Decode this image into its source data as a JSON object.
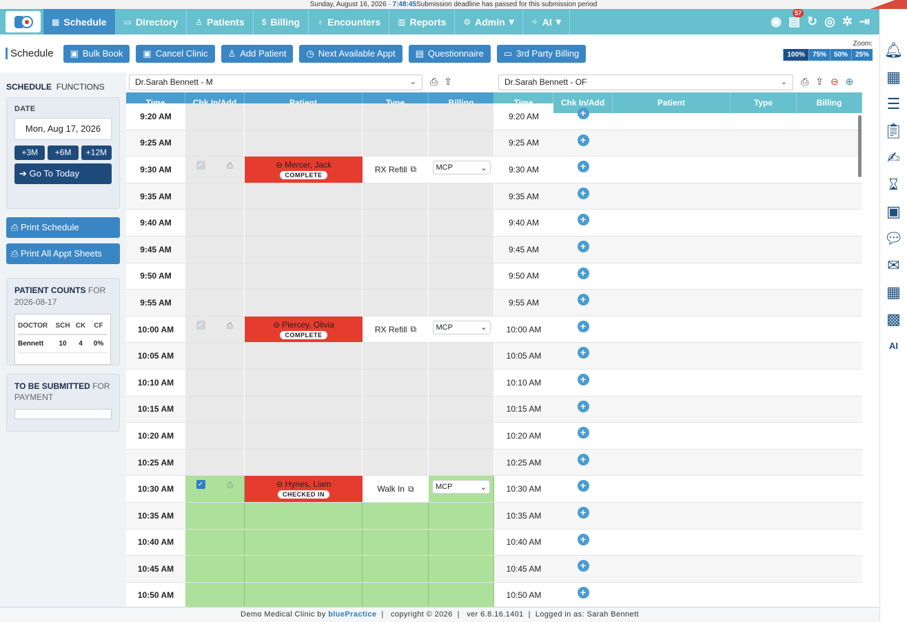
{
  "topbar": {
    "date": "Sunday, August 16, 2026 · ",
    "time": "7:48:45",
    "notice": "Submission deadline has passed for this submission period"
  },
  "nav": {
    "items": [
      {
        "label": "Schedule",
        "icon": "calendar-icon"
      },
      {
        "label": "Directory",
        "icon": "book-icon"
      },
      {
        "label": "Patients",
        "icon": "users-icon"
      },
      {
        "label": "Billing",
        "icon": "dollar-icon"
      },
      {
        "label": "Encounters",
        "icon": "stethoscope-icon"
      },
      {
        "label": "Reports",
        "icon": "bar-chart-icon"
      },
      {
        "label": "Admin",
        "icon": "gear-icon"
      },
      {
        "label": "AI",
        "icon": "sparkle-icon"
      }
    ],
    "badge_count": "57"
  },
  "toolbar": {
    "title": "Schedule",
    "buttons": [
      "Bulk Book",
      "Cancel Clinic",
      "Add Patient",
      "Next Available Appt",
      "Questionnaire",
      "3rd Party Billing"
    ],
    "zoom_label": "Zoom:",
    "zoom_options": [
      "100%",
      "75%",
      "50%",
      "25%"
    ],
    "zoom_selected": "100%"
  },
  "sidebar": {
    "heading": "SCHEDULE",
    "heading_sub": "FUNCTIONS",
    "date_label": "DATE",
    "date_value": "Mon, Aug 17, 2026",
    "jump_buttons": [
      "+3M",
      "+6M",
      "+12M"
    ],
    "today_button": "➔ Go To Today",
    "print_schedule": "Print Schedule",
    "print_all": "Print All Appt Sheets",
    "counts_title": "PATIENT COUNTS",
    "counts_for": "FOR",
    "counts_date": "2026-08-17",
    "counts_headers": [
      "DOCTOR",
      "SCH",
      "CK",
      "CF"
    ],
    "counts_row": [
      "Bennett",
      "10",
      "4",
      "0%"
    ],
    "submit_title": "TO BE SUBMITTED",
    "submit_for": "FOR",
    "submit_sub": "PAYMENT"
  },
  "left_panel": {
    "provider": "Dr.Sarah Bennett - M",
    "columns": [
      "Time",
      "Chk In/Add",
      "Patient",
      "Type",
      "Billing"
    ]
  },
  "right_panel": {
    "provider": "Dr.Sarah Bennett - OF",
    "columns": [
      "Time",
      "Chk In/Add",
      "Patient",
      "Type",
      "Billing"
    ]
  },
  "times": [
    "9:20 AM",
    "9:25 AM",
    "9:30 AM",
    "9:35 AM",
    "9:40 AM",
    "9:45 AM",
    "9:50 AM",
    "9:55 AM",
    "10:00 AM",
    "10:05 AM",
    "10:10 AM",
    "10:15 AM",
    "10:20 AM",
    "10:25 AM",
    "10:30 AM",
    "10:35 AM",
    "10:40 AM",
    "10:45 AM",
    "10:50 AM"
  ],
  "appointments": [
    {
      "slot": 2,
      "patient": "Mercer, Jack",
      "status": "COMPLETE",
      "type": "RX Refill",
      "billing": "MCP",
      "checked": false
    },
    {
      "slot": 8,
      "patient": "Piercey, Olivia",
      "status": "COMPLETE",
      "type": "RX Refill",
      "billing": "MCP",
      "checked": false
    },
    {
      "slot": 14,
      "patient": "Hynes, Liam",
      "status": "CHECKED IN",
      "type": "Walk In",
      "billing": "MCP",
      "checked": true
    }
  ],
  "footer": {
    "clinic": "Demo Medical Clinic by ",
    "brand": "bluePractice",
    "rest": "  |   copyright © 2026  |   ver 6.8.16.1401  |  Logged in as: Sarah Bennett"
  }
}
